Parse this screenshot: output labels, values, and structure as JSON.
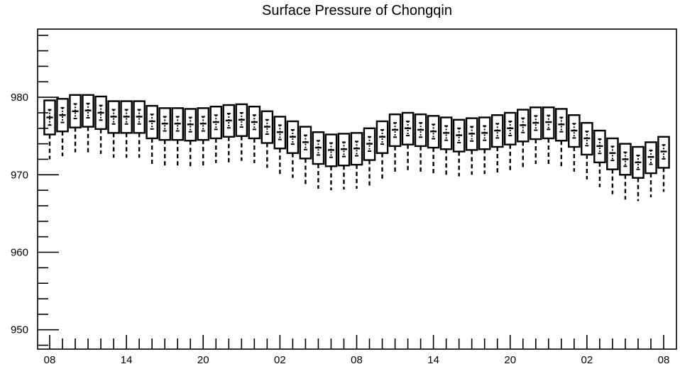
{
  "chart_data": {
    "type": "box",
    "title": "Surface Pressure of Chongqin",
    "xlabel": "",
    "ylabel": "",
    "ylim": [
      947.5,
      988.8
    ],
    "y_ticks": [
      950,
      960,
      970,
      980
    ],
    "y_tick_labels": [
      "950",
      "960",
      "970",
      "980"
    ],
    "x_hours_range": [
      0,
      48
    ],
    "x_ticks_hours": [
      0,
      6,
      12,
      18,
      24,
      30,
      36,
      42,
      48
    ],
    "x_tick_labels": [
      "08",
      "14",
      "20",
      "02",
      "08",
      "14",
      "20",
      "02",
      "08"
    ],
    "grid": false,
    "box_interval_hours": 1,
    "boxes": [
      {
        "hour": 0,
        "whisker_low": 972.0,
        "q1": 975.2,
        "median": 977.4,
        "q3": 979.6,
        "mean": 977.4
      },
      {
        "hour": 1,
        "whisker_low": 972.4,
        "q1": 975.6,
        "median": 977.7,
        "q3": 979.8,
        "mean": 977.7
      },
      {
        "hour": 2,
        "whisker_low": 972.9,
        "q1": 976.1,
        "median": 978.2,
        "q3": 980.3,
        "mean": 978.2
      },
      {
        "hour": 3,
        "whisker_low": 972.9,
        "q1": 976.2,
        "median": 978.3,
        "q3": 980.3,
        "mean": 978.3
      },
      {
        "hour": 4,
        "whisker_low": 972.7,
        "q1": 975.9,
        "median": 978.0,
        "q3": 980.1,
        "mean": 978.0
      },
      {
        "hour": 5,
        "whisker_low": 972.2,
        "q1": 975.4,
        "median": 977.5,
        "q3": 979.5,
        "mean": 977.5
      },
      {
        "hour": 6,
        "whisker_low": 972.2,
        "q1": 975.4,
        "median": 977.5,
        "q3": 979.5,
        "mean": 977.5
      },
      {
        "hour": 7,
        "whisker_low": 972.2,
        "q1": 975.4,
        "median": 977.5,
        "q3": 979.5,
        "mean": 977.5
      },
      {
        "hour": 8,
        "whisker_low": 971.4,
        "q1": 974.7,
        "median": 976.9,
        "q3": 978.9,
        "mean": 976.9
      },
      {
        "hour": 9,
        "whisker_low": 971.2,
        "q1": 974.5,
        "median": 976.6,
        "q3": 978.6,
        "mean": 976.6
      },
      {
        "hour": 10,
        "whisker_low": 971.2,
        "q1": 974.5,
        "median": 976.6,
        "q3": 978.6,
        "mean": 976.6
      },
      {
        "hour": 11,
        "whisker_low": 971.1,
        "q1": 974.4,
        "median": 976.5,
        "q3": 978.5,
        "mean": 976.5
      },
      {
        "hour": 12,
        "whisker_low": 971.2,
        "q1": 974.5,
        "median": 976.6,
        "q3": 978.6,
        "mean": 976.6
      },
      {
        "hour": 13,
        "whisker_low": 971.5,
        "q1": 974.7,
        "median": 976.8,
        "q3": 978.8,
        "mean": 976.8
      },
      {
        "hour": 14,
        "whisker_low": 971.6,
        "q1": 974.9,
        "median": 977.0,
        "q3": 979.0,
        "mean": 977.0
      },
      {
        "hour": 15,
        "whisker_low": 971.8,
        "q1": 975.0,
        "median": 977.1,
        "q3": 979.1,
        "mean": 977.1
      },
      {
        "hour": 16,
        "whisker_low": 971.5,
        "q1": 974.7,
        "median": 976.8,
        "q3": 978.8,
        "mean": 976.8
      },
      {
        "hour": 17,
        "whisker_low": 970.9,
        "q1": 974.1,
        "median": 976.2,
        "q3": 978.2,
        "mean": 976.2
      },
      {
        "hour": 18,
        "whisker_low": 970.1,
        "q1": 973.4,
        "median": 975.5,
        "q3": 977.5,
        "mean": 975.5
      },
      {
        "hour": 19,
        "whisker_low": 969.6,
        "q1": 972.8,
        "median": 974.9,
        "q3": 976.9,
        "mean": 974.9
      },
      {
        "hour": 20,
        "whisker_low": 968.8,
        "q1": 972.1,
        "median": 974.2,
        "q3": 976.2,
        "mean": 974.2
      },
      {
        "hour": 21,
        "whisker_low": 968.2,
        "q1": 971.4,
        "median": 973.5,
        "q3": 975.5,
        "mean": 973.5
      },
      {
        "hour": 22,
        "whisker_low": 968.0,
        "q1": 971.1,
        "median": 973.2,
        "q3": 975.2,
        "mean": 973.2
      },
      {
        "hour": 23,
        "whisker_low": 968.1,
        "q1": 971.2,
        "median": 973.3,
        "q3": 975.3,
        "mean": 973.3
      },
      {
        "hour": 24,
        "whisker_low": 968.2,
        "q1": 971.3,
        "median": 973.4,
        "q3": 975.4,
        "mean": 973.4
      },
      {
        "hour": 25,
        "whisker_low": 968.6,
        "q1": 971.9,
        "median": 974.0,
        "q3": 976.0,
        "mean": 974.0
      },
      {
        "hour": 26,
        "whisker_low": 969.5,
        "q1": 972.8,
        "median": 974.9,
        "q3": 976.9,
        "mean": 974.9
      },
      {
        "hour": 27,
        "whisker_low": 970.4,
        "q1": 973.7,
        "median": 975.8,
        "q3": 977.8,
        "mean": 975.8
      },
      {
        "hour": 28,
        "whisker_low": 970.6,
        "q1": 973.9,
        "median": 976.0,
        "q3": 978.0,
        "mean": 976.0
      },
      {
        "hour": 29,
        "whisker_low": 970.4,
        "q1": 973.7,
        "median": 975.8,
        "q3": 977.8,
        "mean": 975.8
      },
      {
        "hour": 30,
        "whisker_low": 970.2,
        "q1": 973.5,
        "median": 975.6,
        "q3": 977.6,
        "mean": 975.6
      },
      {
        "hour": 31,
        "whisker_low": 970.0,
        "q1": 973.3,
        "median": 975.4,
        "q3": 977.4,
        "mean": 975.4
      },
      {
        "hour": 32,
        "whisker_low": 969.8,
        "q1": 973.0,
        "median": 975.1,
        "q3": 977.1,
        "mean": 975.1
      },
      {
        "hour": 33,
        "whisker_low": 970.0,
        "q1": 973.2,
        "median": 975.3,
        "q3": 977.3,
        "mean": 975.3
      },
      {
        "hour": 34,
        "whisker_low": 970.1,
        "q1": 973.3,
        "median": 975.4,
        "q3": 977.4,
        "mean": 975.4
      },
      {
        "hour": 35,
        "whisker_low": 970.3,
        "q1": 973.6,
        "median": 975.7,
        "q3": 977.7,
        "mean": 975.7
      },
      {
        "hour": 36,
        "whisker_low": 970.6,
        "q1": 973.9,
        "median": 976.0,
        "q3": 978.0,
        "mean": 976.0
      },
      {
        "hour": 37,
        "whisker_low": 971.0,
        "q1": 974.3,
        "median": 976.4,
        "q3": 978.4,
        "mean": 976.4
      },
      {
        "hour": 38,
        "whisker_low": 971.4,
        "q1": 974.6,
        "median": 976.7,
        "q3": 978.7,
        "mean": 976.7
      },
      {
        "hour": 39,
        "whisker_low": 971.4,
        "q1": 974.7,
        "median": 976.8,
        "q3": 978.7,
        "mean": 976.8
      },
      {
        "hour": 40,
        "whisker_low": 971.1,
        "q1": 974.4,
        "median": 976.5,
        "q3": 978.5,
        "mean": 976.5
      },
      {
        "hour": 41,
        "whisker_low": 970.4,
        "q1": 973.6,
        "median": 975.7,
        "q3": 977.7,
        "mean": 975.7
      },
      {
        "hour": 42,
        "whisker_low": 969.4,
        "q1": 972.6,
        "median": 974.7,
        "q3": 976.7,
        "mean": 974.7
      },
      {
        "hour": 43,
        "whisker_low": 968.4,
        "q1": 971.6,
        "median": 973.7,
        "q3": 975.7,
        "mean": 973.7
      },
      {
        "hour": 44,
        "whisker_low": 967.5,
        "q1": 970.7,
        "median": 972.8,
        "q3": 974.7,
        "mean": 972.8
      },
      {
        "hour": 45,
        "whisker_low": 966.8,
        "q1": 970.0,
        "median": 972.0,
        "q3": 974.0,
        "mean": 972.0
      },
      {
        "hour": 46,
        "whisker_low": 966.6,
        "q1": 969.6,
        "median": 971.6,
        "q3": 973.6,
        "mean": 971.6
      },
      {
        "hour": 47,
        "whisker_low": 967.1,
        "q1": 970.2,
        "median": 972.3,
        "q3": 974.2,
        "mean": 972.3
      },
      {
        "hour": 48,
        "whisker_low": 967.8,
        "q1": 970.9,
        "median": 973.0,
        "q3": 974.9,
        "mean": 973.0
      }
    ]
  }
}
